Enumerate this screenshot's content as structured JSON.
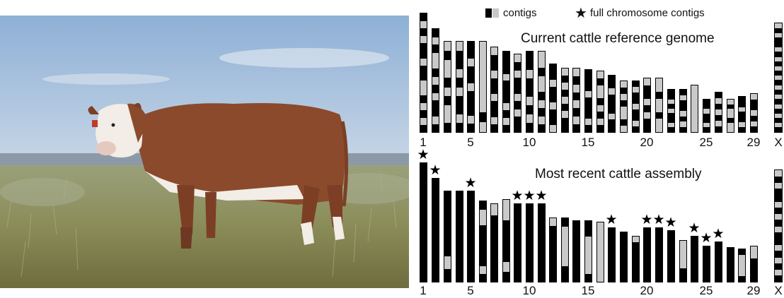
{
  "legend": {
    "contigs_label": "contigs",
    "full_label": "full chromosome contigs"
  },
  "panels": [
    {
      "title": "Current cattle reference genome",
      "axis_labels": [
        "1",
        "5",
        "10",
        "15",
        "20",
        "25",
        "29",
        "X"
      ],
      "chromosomes": [
        {
          "stars": false,
          "contig_pattern": [
            1,
            0,
            1,
            0,
            1,
            1,
            0,
            1,
            1,
            0,
            0,
            1,
            0,
            1,
            0,
            1
          ]
        },
        {
          "stars": false,
          "contig_pattern": [
            1,
            0,
            1,
            0,
            0,
            1,
            0,
            1,
            0,
            1,
            1,
            0,
            1
          ]
        },
        {
          "stars": false,
          "contig_pattern": [
            0,
            1,
            0,
            0,
            1,
            0,
            1,
            0,
            0,
            1
          ]
        },
        {
          "stars": false,
          "contig_pattern": [
            0,
            1,
            1,
            0,
            1,
            0,
            1,
            1,
            0,
            1
          ]
        },
        {
          "stars": false,
          "contig_pattern": [
            1,
            1,
            0,
            1,
            1,
            0,
            1,
            1,
            1,
            0,
            1
          ]
        },
        {
          "stars": false,
          "contig_pattern": [
            0,
            0,
            0,
            0,
            0,
            0,
            0,
            1,
            0
          ]
        },
        {
          "stars": false,
          "contig_pattern": [
            0,
            1,
            1,
            0,
            1,
            1,
            0,
            1,
            1,
            0,
            1
          ]
        },
        {
          "stars": false,
          "contig_pattern": [
            1,
            1,
            1,
            0,
            1,
            1,
            1,
            0,
            1,
            0,
            1
          ]
        },
        {
          "stars": false,
          "contig_pattern": [
            0,
            1,
            0,
            1,
            1,
            0,
            1,
            0,
            1,
            1
          ]
        },
        {
          "stars": false,
          "contig_pattern": [
            1,
            1,
            0,
            1,
            1,
            0,
            1,
            0,
            1
          ]
        },
        {
          "stars": false,
          "contig_pattern": [
            0,
            0,
            1,
            0,
            0,
            1,
            0,
            1,
            0,
            1
          ]
        },
        {
          "stars": false,
          "contig_pattern": [
            1,
            1,
            0,
            1,
            1,
            0,
            1,
            1,
            0
          ]
        },
        {
          "stars": false,
          "contig_pattern": [
            0,
            1,
            0,
            1,
            0,
            1,
            0,
            1,
            1
          ]
        },
        {
          "stars": false,
          "contig_pattern": [
            0,
            1,
            0,
            1,
            0,
            1,
            0,
            1
          ]
        },
        {
          "stars": false,
          "contig_pattern": [
            1,
            1,
            1,
            0,
            1,
            1,
            1,
            0,
            1
          ]
        },
        {
          "stars": false,
          "contig_pattern": [
            0,
            1,
            0,
            0,
            1,
            0,
            1,
            0,
            1
          ]
        },
        {
          "stars": false,
          "contig_pattern": [
            1,
            1,
            0,
            1,
            1,
            1,
            0,
            1,
            1
          ]
        },
        {
          "stars": false,
          "contig_pattern": [
            0,
            1,
            0,
            1,
            0,
            0,
            1,
            0
          ]
        },
        {
          "stars": false,
          "contig_pattern": [
            1,
            0,
            1,
            1,
            0,
            1,
            1,
            0,
            1
          ]
        },
        {
          "stars": false,
          "contig_pattern": [
            0,
            1,
            1,
            0,
            1,
            0,
            1,
            1
          ]
        },
        {
          "stars": false,
          "contig_pattern": [
            0,
            0,
            1,
            0,
            0,
            1,
            0,
            0
          ]
        },
        {
          "stars": false,
          "contig_pattern": [
            1,
            1,
            0,
            1,
            0,
            1,
            1,
            0,
            1
          ]
        },
        {
          "stars": false,
          "contig_pattern": [
            1,
            0,
            1,
            1,
            0,
            1,
            0,
            1
          ]
        },
        {
          "stars": false,
          "contig_pattern": [
            0,
            0,
            0,
            0,
            0,
            0,
            0
          ]
        },
        {
          "stars": false,
          "contig_pattern": [
            1,
            1,
            0,
            1,
            1,
            0,
            1
          ]
        },
        {
          "stars": false,
          "contig_pattern": [
            1,
            0,
            1,
            0,
            1,
            0,
            1
          ]
        },
        {
          "stars": false,
          "contig_pattern": [
            0,
            1,
            0,
            0,
            1,
            0,
            0
          ]
        },
        {
          "stars": false,
          "contig_pattern": [
            1,
            1,
            0,
            1,
            1,
            0,
            1
          ]
        },
        {
          "stars": false,
          "contig_pattern": [
            0,
            1,
            1,
            0,
            1,
            0,
            1
          ]
        },
        {
          "stars": false,
          "contig_pattern": [
            0,
            1,
            0,
            1,
            1,
            0,
            1,
            0,
            1,
            0,
            1,
            0,
            1,
            0,
            1,
            0,
            1,
            0,
            1,
            0,
            1,
            0,
            1
          ]
        }
      ]
    },
    {
      "title": "Most recent cattle assembly",
      "axis_labels": [
        "1",
        "5",
        "10",
        "15",
        "20",
        "25",
        "29",
        "X"
      ],
      "chromosomes": [
        {
          "stars": true,
          "contig_pattern": [
            1
          ]
        },
        {
          "stars": true,
          "contig_pattern": [
            1
          ]
        },
        {
          "stars": false,
          "contig_pattern": [
            1,
            1,
            1,
            1,
            1,
            0,
            1
          ]
        },
        {
          "stars": false,
          "contig_pattern": [
            1
          ]
        },
        {
          "stars": true,
          "contig_pattern": [
            1
          ]
        },
        {
          "stars": false,
          "contig_pattern": [
            1,
            0,
            0,
            1,
            1,
            1,
            1,
            1,
            0,
            1
          ]
        },
        {
          "stars": false,
          "contig_pattern": [
            0,
            1,
            1,
            1,
            1,
            1,
            1
          ]
        },
        {
          "stars": false,
          "contig_pattern": [
            0,
            0,
            1,
            1,
            1,
            1,
            0,
            1
          ]
        },
        {
          "stars": true,
          "contig_pattern": [
            1
          ]
        },
        {
          "stars": true,
          "contig_pattern": [
            1
          ]
        },
        {
          "stars": true,
          "contig_pattern": [
            1
          ]
        },
        {
          "stars": false,
          "contig_pattern": [
            0,
            1,
            1,
            1,
            1,
            1,
            1,
            1
          ]
        },
        {
          "stars": false,
          "contig_pattern": [
            1,
            0,
            0,
            0,
            0,
            0,
            1,
            1
          ]
        },
        {
          "stars": false,
          "contig_pattern": [
            1,
            1,
            1,
            1,
            1,
            1,
            1,
            1
          ]
        },
        {
          "stars": false,
          "contig_pattern": [
            1,
            1,
            0,
            0,
            0,
            0,
            0,
            1
          ]
        },
        {
          "stars": false,
          "contig_pattern": [
            0,
            0,
            0,
            0,
            0,
            0,
            0,
            0
          ]
        },
        {
          "stars": true,
          "contig_pattern": [
            1
          ]
        },
        {
          "stars": false,
          "contig_pattern": [
            1,
            1,
            1,
            1,
            1,
            1,
            1,
            1
          ]
        },
        {
          "stars": false,
          "contig_pattern": [
            0,
            1,
            1,
            1,
            1,
            1,
            1,
            1
          ]
        },
        {
          "stars": true,
          "contig_pattern": [
            1
          ]
        },
        {
          "stars": true,
          "contig_pattern": [
            1
          ]
        },
        {
          "stars": true,
          "contig_pattern": [
            1
          ]
        },
        {
          "stars": false,
          "contig_pattern": [
            0,
            0,
            0,
            0,
            1,
            1
          ]
        },
        {
          "stars": true,
          "contig_pattern": [
            1
          ]
        },
        {
          "stars": true,
          "contig_pattern": [
            1
          ]
        },
        {
          "stars": true,
          "contig_pattern": [
            1
          ]
        },
        {
          "stars": false,
          "contig_pattern": [
            1,
            1,
            1,
            1,
            1,
            1
          ]
        },
        {
          "stars": false,
          "contig_pattern": [
            1,
            0,
            0,
            0,
            0,
            1
          ]
        },
        {
          "stars": false,
          "contig_pattern": [
            0,
            0,
            1,
            1,
            1,
            1
          ]
        },
        {
          "stars": false,
          "contig_pattern": [
            0,
            1,
            0,
            1,
            1,
            0,
            1,
            0,
            1,
            0,
            1,
            1,
            0,
            1,
            0,
            1,
            0,
            1
          ]
        }
      ]
    }
  ]
}
